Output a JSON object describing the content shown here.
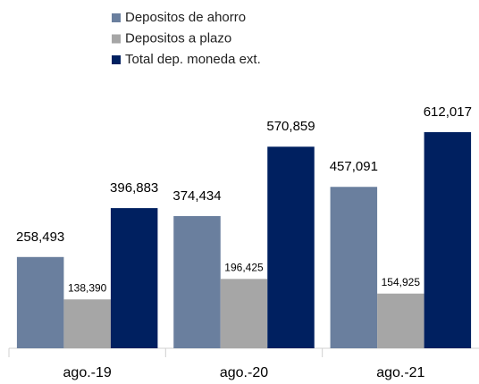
{
  "chart_data": {
    "type": "bar",
    "categories": [
      "ago.-19",
      "ago.-20",
      "ago.-21"
    ],
    "series": [
      {
        "name": "Depositos de ahorro",
        "color": "#6a7f9e",
        "values": [
          258493,
          374434,
          457091
        ],
        "value_labels": [
          "258,493",
          "374,434",
          "457,091"
        ]
      },
      {
        "name": "Depositos a plazo",
        "color": "#a6a6a6",
        "values": [
          138390,
          196425,
          154925
        ],
        "value_labels": [
          "138,390",
          "196,425",
          "154,925"
        ]
      },
      {
        "name": "Total dep. moneda ext.",
        "color": "#002060",
        "values": [
          396883,
          570859,
          612017
        ],
        "value_labels": [
          "396,883",
          "570,859",
          "612,017"
        ]
      }
    ],
    "legend": "top"
  }
}
